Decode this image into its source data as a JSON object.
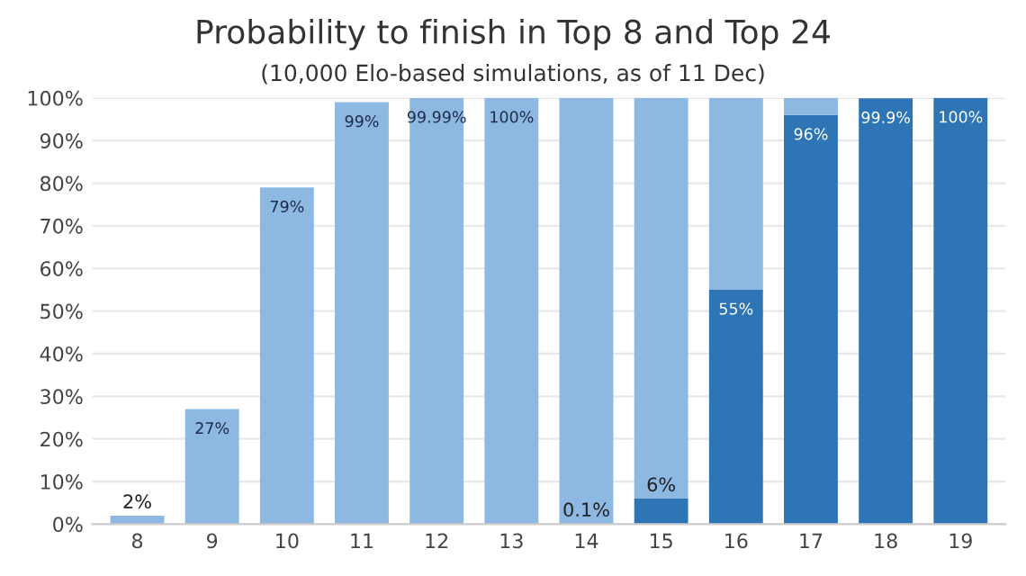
{
  "chart_data": {
    "type": "bar",
    "title": "Probability to finish in Top 8 and Top 24",
    "subtitle": "(10,000 Elo-based simulations, as of 11 Dec)",
    "categories": [
      "8",
      "9",
      "10",
      "11",
      "12",
      "13",
      "14",
      "15",
      "16",
      "17",
      "18",
      "19"
    ],
    "stacked": true,
    "series": [
      {
        "color": "#2e75b6",
        "values": [
          0,
          0,
          0,
          0,
          0,
          0,
          0.1,
          6,
          55,
          96,
          99.9,
          100
        ],
        "value_labels": [
          null,
          null,
          null,
          null,
          null,
          null,
          "0.1%",
          "6%",
          "55%",
          "96%",
          "99.9%",
          "100%"
        ]
      },
      {
        "color": "#8db8e2",
        "values": [
          2,
          27,
          79,
          99,
          99.99,
          100,
          99.9,
          94,
          45,
          4,
          null,
          0
        ],
        "value_labels": [
          "2%",
          "27%",
          "79%",
          "99%",
          "99.99%",
          "100%",
          null,
          null,
          null,
          null,
          null,
          null
        ]
      }
    ],
    "ylim": [
      0,
      100
    ],
    "yticks": [
      {
        "value": 0,
        "label": "0%"
      },
      {
        "value": 10,
        "label": "10%"
      },
      {
        "value": 20,
        "label": "20%"
      },
      {
        "value": 30,
        "label": "30%"
      },
      {
        "value": 40,
        "label": "40%"
      },
      {
        "value": 50,
        "label": "50%"
      },
      {
        "value": 60,
        "label": "60%"
      },
      {
        "value": 70,
        "label": "70%"
      },
      {
        "value": 80,
        "label": "80%"
      },
      {
        "value": 90,
        "label": "90%"
      },
      {
        "value": 100,
        "label": "100%"
      }
    ],
    "grid": "y"
  }
}
